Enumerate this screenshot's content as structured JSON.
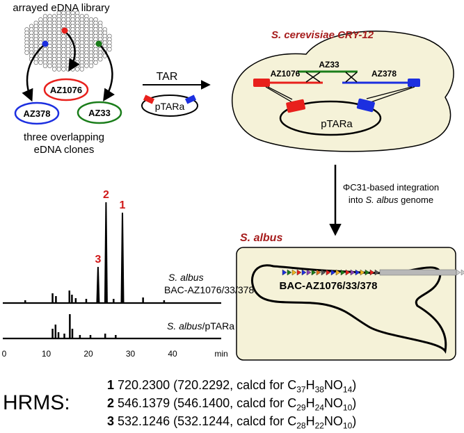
{
  "library": {
    "title": "arrayed eDNA library",
    "clones": [
      "AZ1076",
      "AZ378",
      "AZ33"
    ],
    "caption_line1": "three overlapping",
    "caption_line2": "eDNA clones"
  },
  "tar": {
    "label": "TAR",
    "vector": "pTARa"
  },
  "yeast": {
    "title": "S. cerevisiae CRY-12",
    "segments": [
      "AZ1076",
      "AZ33",
      "AZ378"
    ],
    "vector": "pTARa"
  },
  "integration": {
    "line1": "ΦC31-based integration",
    "line2_pre": "into ",
    "line2_species": "S. albus",
    "line2_post": " genome"
  },
  "albus": {
    "title": "S. albus",
    "construct": "BAC-AZ1076/33/378"
  },
  "chromatogram": {
    "top_label_species": "S. albus",
    "top_label_construct": "BAC-AZ1076/33/378",
    "bottom_label_species": "S. albus",
    "bottom_label_vector": "/pTARa",
    "x_ticks": [
      "0",
      "10",
      "20",
      "30",
      "40"
    ],
    "x_unit": "min",
    "peaks": [
      {
        "label": "3",
        "time": 22.3
      },
      {
        "label": "2",
        "time": 24.2
      },
      {
        "label": "1",
        "time": 28.1
      }
    ]
  },
  "hrms": {
    "label": "HRMS:",
    "entries": [
      {
        "id": "1",
        "found": "720.2300",
        "calcd": "720.2292",
        "formula_parts": [
          [
            "C",
            "37"
          ],
          [
            "H",
            "38"
          ],
          [
            "NO",
            "14"
          ]
        ]
      },
      {
        "id": "2",
        "found": "546.1379",
        "calcd": "546.1400",
        "formula_parts": [
          [
            "C",
            "29"
          ],
          [
            "H",
            "24"
          ],
          [
            "NO",
            "10"
          ]
        ]
      },
      {
        "id": "3",
        "found": "532.1246",
        "calcd": "532.1244",
        "formula_parts": [
          [
            "C",
            "28"
          ],
          [
            "H",
            "22"
          ],
          [
            "NO",
            "10"
          ]
        ]
      }
    ],
    "calcd_prefix": "calcd for "
  },
  "colors": {
    "red": "#e8201c",
    "green": "#1a7d1a",
    "blue": "#1c2fe0",
    "title_red": "#a61c1c",
    "cell_fill": "#f5f2d8"
  }
}
